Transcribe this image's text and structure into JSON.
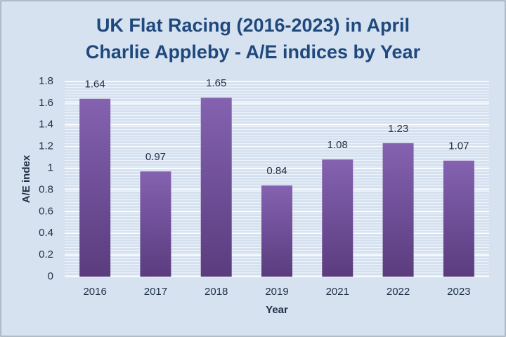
{
  "chart_data": {
    "type": "bar",
    "title": [
      "UK Flat Racing (2016-2023) in April",
      "Charlie Appleby - A/E indices by Year"
    ],
    "x_label": "Year",
    "y_label": "A/E index",
    "categories": [
      "2016",
      "2017",
      "2018",
      "2019",
      "2021",
      "2022",
      "2023"
    ],
    "values": [
      1.64,
      0.97,
      1.65,
      0.84,
      1.08,
      1.23,
      1.07
    ],
    "color": "#7352a0",
    "ylim": [
      0,
      1.8
    ],
    "yticks": [
      0,
      0.2,
      0.4,
      0.6,
      0.8,
      1,
      1.2,
      1.4,
      1.6,
      1.8
    ],
    "grid": true
  }
}
